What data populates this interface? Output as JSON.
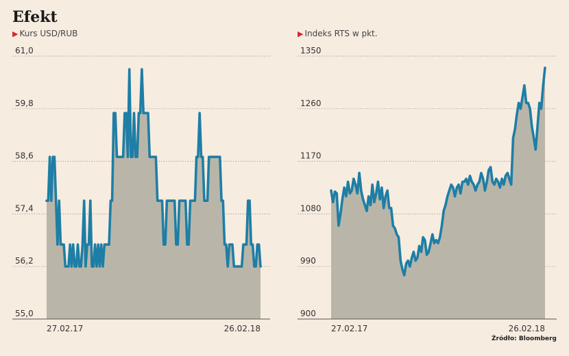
{
  "title": "Efekt",
  "source": "Źródło: Bloomberg",
  "chart_data": [
    {
      "type": "area",
      "subtitle": "Kurs USD/RUB",
      "ylim": [
        55.0,
        61.0
      ],
      "yticks": [
        "55,0",
        "56,2",
        "57,4",
        "58,6",
        "59,8",
        "61,0"
      ],
      "ytick_values": [
        55.0,
        56.2,
        57.4,
        58.6,
        59.8,
        61.0
      ],
      "xtick_labels": [
        "27.02.17",
        "26.02.18"
      ],
      "grid": true,
      "color": "#1e7ea5",
      "values": [
        57.7,
        57.7,
        58.7,
        57.7,
        58.7,
        58.7,
        57.7,
        56.7,
        57.7,
        56.7,
        56.7,
        56.7,
        56.2,
        56.2,
        56.2,
        56.7,
        56.2,
        56.7,
        56.2,
        56.2,
        56.7,
        56.2,
        56.2,
        56.7,
        57.7,
        56.2,
        56.7,
        56.7,
        57.7,
        56.2,
        56.2,
        56.7,
        56.2,
        56.7,
        56.2,
        56.7,
        56.2,
        56.7,
        56.7,
        56.7,
        56.7,
        57.7,
        57.7,
        59.7,
        59.7,
        58.7,
        58.7,
        58.7,
        58.7,
        58.7,
        59.7,
        59.7,
        58.7,
        60.7,
        58.7,
        58.7,
        59.7,
        58.7,
        58.7,
        59.7,
        59.7,
        60.7,
        59.7,
        59.7,
        59.7,
        59.7,
        58.7,
        58.7,
        58.7,
        58.7,
        58.7,
        57.7,
        57.7,
        57.7,
        57.7,
        56.7,
        56.7,
        57.7,
        57.7,
        57.7,
        57.7,
        57.7,
        57.7,
        56.7,
        56.7,
        57.7,
        57.7,
        57.7,
        57.7,
        57.7,
        56.7,
        56.7,
        57.7,
        57.7,
        57.7,
        57.7,
        58.7,
        58.7,
        59.7,
        58.7,
        58.7,
        57.7,
        57.7,
        57.7,
        58.7,
        58.7,
        58.7,
        58.7,
        58.7,
        58.7,
        58.7,
        58.7,
        57.7,
        57.7,
        56.7,
        56.7,
        56.2,
        56.7,
        56.7,
        56.7,
        56.2,
        56.2,
        56.2,
        56.2,
        56.2,
        56.2,
        56.7,
        56.7,
        56.7,
        57.7,
        57.7,
        56.7,
        56.7,
        56.2,
        56.2,
        56.7,
        56.7,
        56.2
      ]
    },
    {
      "type": "area",
      "subtitle": "Indeks RTS w pkt.",
      "ylim": [
        900,
        1350
      ],
      "yticks": [
        "900",
        "990",
        "1080",
        "1170",
        "1260",
        "1350"
      ],
      "ytick_values": [
        900,
        990,
        1080,
        1170,
        1260,
        1350
      ],
      "xtick_labels": [
        "27.02.17",
        "26.02.18"
      ],
      "grid": true,
      "color": "#1e7ea5",
      "values": [
        1120,
        1100,
        1118,
        1115,
        1060,
        1080,
        1105,
        1125,
        1110,
        1135,
        1115,
        1120,
        1140,
        1130,
        1115,
        1150,
        1120,
        1105,
        1095,
        1085,
        1110,
        1095,
        1130,
        1100,
        1115,
        1135,
        1105,
        1125,
        1090,
        1110,
        1120,
        1090,
        1090,
        1060,
        1055,
        1045,
        1040,
        1000,
        985,
        975,
        995,
        1000,
        990,
        1005,
        1015,
        1000,
        1005,
        1025,
        1015,
        1040,
        1035,
        1010,
        1015,
        1030,
        1045,
        1030,
        1035,
        1030,
        1040,
        1060,
        1085,
        1095,
        1110,
        1120,
        1130,
        1125,
        1110,
        1125,
        1130,
        1115,
        1135,
        1135,
        1140,
        1130,
        1145,
        1135,
        1130,
        1120,
        1130,
        1135,
        1150,
        1140,
        1120,
        1135,
        1155,
        1160,
        1135,
        1130,
        1140,
        1135,
        1125,
        1140,
        1130,
        1145,
        1150,
        1140,
        1130,
        1210,
        1225,
        1250,
        1270,
        1260,
        1280,
        1300,
        1270,
        1270,
        1260,
        1230,
        1210,
        1190,
        1230,
        1270,
        1260,
        1300,
        1330
      ]
    }
  ]
}
